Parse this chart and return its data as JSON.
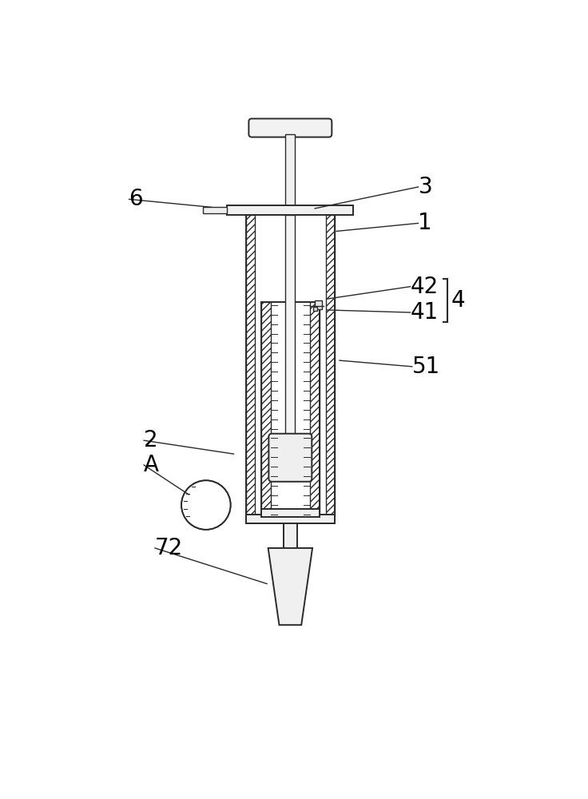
{
  "bg_color": "#ffffff",
  "line_color": "#2a2a2a",
  "fig_w": 7.36,
  "fig_h": 10.0,
  "dpi": 100
}
